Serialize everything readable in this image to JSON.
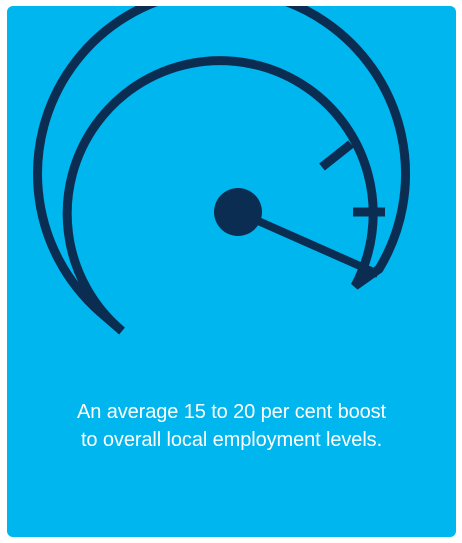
{
  "caption": {
    "line1": "An average 15 to 20 per cent boost",
    "line2": "to overall local employment levels."
  },
  "gauge": {
    "icon": "speedometer-icon",
    "level_percent": 75
  },
  "colors": {
    "background": "#00B6EE",
    "icon_stroke": "#0B2D52",
    "text": "#FFFFFF"
  }
}
